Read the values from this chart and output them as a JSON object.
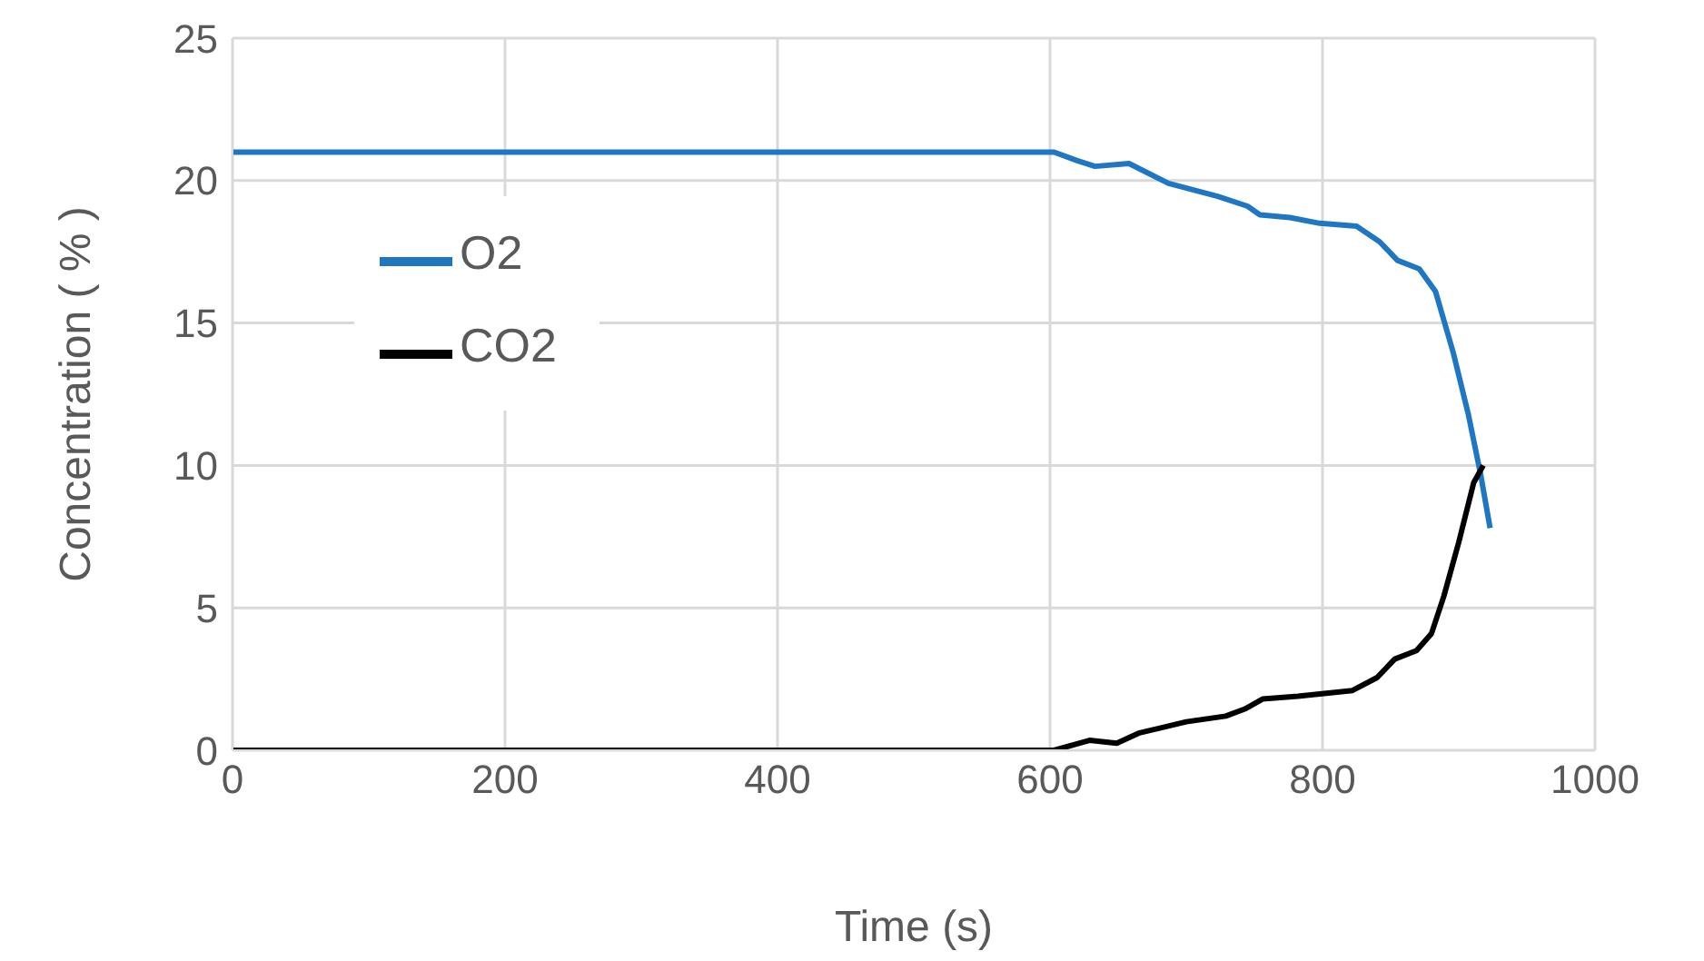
{
  "chart_data": {
    "type": "line",
    "xlabel": "Time (s)",
    "ylabel": "Concentration ( % )",
    "xlim": [
      0,
      1000
    ],
    "xticks": [
      0,
      200,
      400,
      600,
      800,
      1000
    ],
    "ylim": [
      0,
      25
    ],
    "yticks": [
      0,
      5,
      10,
      15,
      20,
      25
    ],
    "grid": true,
    "legend": "left",
    "marker": "none",
    "line_style": "solid",
    "series": [
      {
        "name": "O2",
        "color": "#1f77c4",
        "x": [
          0,
          603,
          620,
          633,
          658,
          687,
          723,
          745,
          754,
          776,
          798,
          825,
          842,
          855,
          871,
          883,
          896,
          907,
          916,
          923
        ],
        "values": [
          21,
          21,
          20.7,
          20.5,
          20.6,
          19.9,
          19.45,
          19.1,
          18.8,
          18.7,
          18.5,
          18.4,
          17.85,
          17.2,
          16.9,
          16.1,
          13.95,
          11.8,
          9.7,
          7.8
        ]
      },
      {
        "name": "CO2",
        "color": "#000000",
        "x": [
          0,
          603,
          629,
          649,
          665,
          700,
          729,
          743,
          756,
          782,
          822,
          840,
          853,
          869,
          880,
          889,
          900,
          911,
          918
        ],
        "values": [
          0,
          0,
          0.35,
          0.25,
          0.6,
          1.0,
          1.2,
          1.45,
          1.8,
          1.9,
          2.1,
          2.55,
          3.2,
          3.5,
          4.1,
          5.4,
          7.3,
          9.4,
          10.0
        ]
      }
    ]
  }
}
